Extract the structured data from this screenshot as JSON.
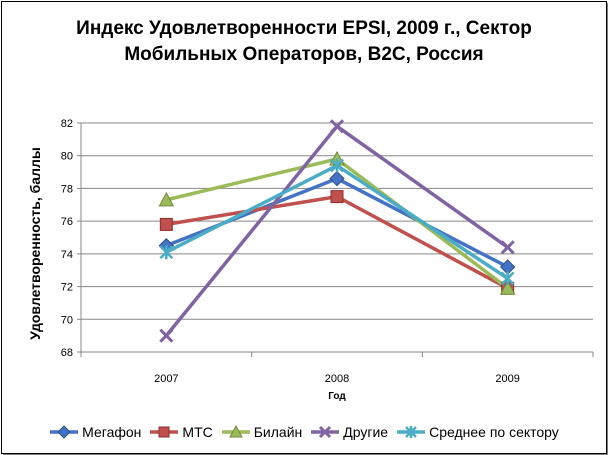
{
  "chart_data": {
    "type": "line",
    "title_line1": "Индекс Удовлетворенности EPSI, 2009 г., Сектор",
    "title_line2": "Мобильных Операторов, B2C, Россия",
    "xlabel": "Год",
    "ylabel": "Удовлетворенность, баллы",
    "categories": [
      "2007",
      "2008",
      "2009"
    ],
    "ylim": [
      68,
      82
    ],
    "yticks": [
      68,
      70,
      72,
      74,
      76,
      78,
      80,
      82
    ],
    "grid": true,
    "legend_position": "bottom",
    "series": [
      {
        "name": "Мегафон",
        "values": [
          74.5,
          78.6,
          73.2
        ],
        "color": "#4472c4",
        "marker": "diamond"
      },
      {
        "name": "МТС",
        "values": [
          75.8,
          77.5,
          71.9
        ],
        "color": "#c0504d",
        "marker": "square"
      },
      {
        "name": "Билайн",
        "values": [
          77.3,
          79.8,
          71.9
        ],
        "color": "#9bbb59",
        "marker": "triangle"
      },
      {
        "name": "Другие",
        "values": [
          69.0,
          81.8,
          74.4
        ],
        "color": "#8064a2",
        "marker": "x"
      },
      {
        "name": "Среднее по сектору",
        "values": [
          74.1,
          79.4,
          72.5
        ],
        "color": "#4bacc6",
        "marker": "star"
      }
    ]
  }
}
